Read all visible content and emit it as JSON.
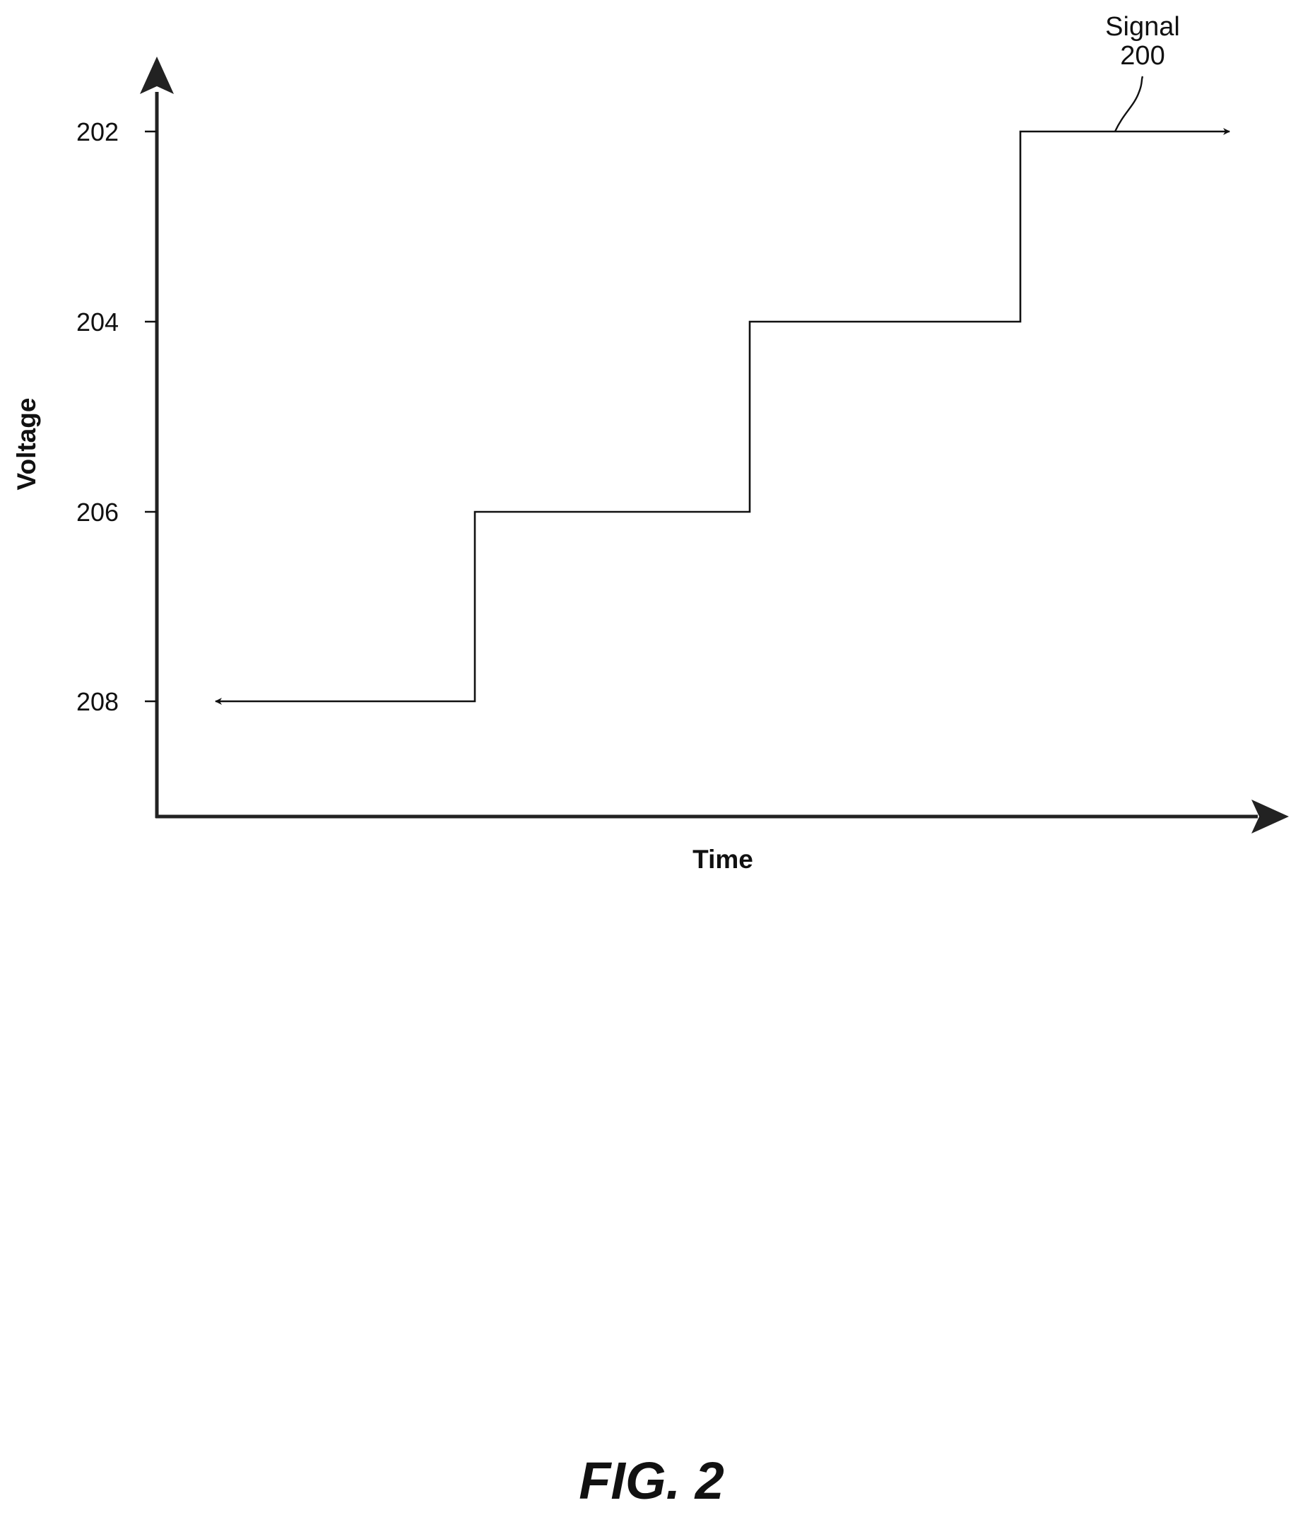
{
  "diagram": {
    "y_axis_label": "Voltage",
    "x_axis_label": "Time",
    "callout": {
      "line1": "Signal",
      "line2": "200"
    },
    "figure_caption": "FIG. 2",
    "levels": [
      {
        "ref": "202",
        "label": "202"
      },
      {
        "ref": "204",
        "label": "204"
      },
      {
        "ref": "206",
        "label": "206"
      },
      {
        "ref": "208",
        "label": "208"
      }
    ],
    "signal_steps": [
      "208",
      "206",
      "204",
      "202"
    ]
  }
}
